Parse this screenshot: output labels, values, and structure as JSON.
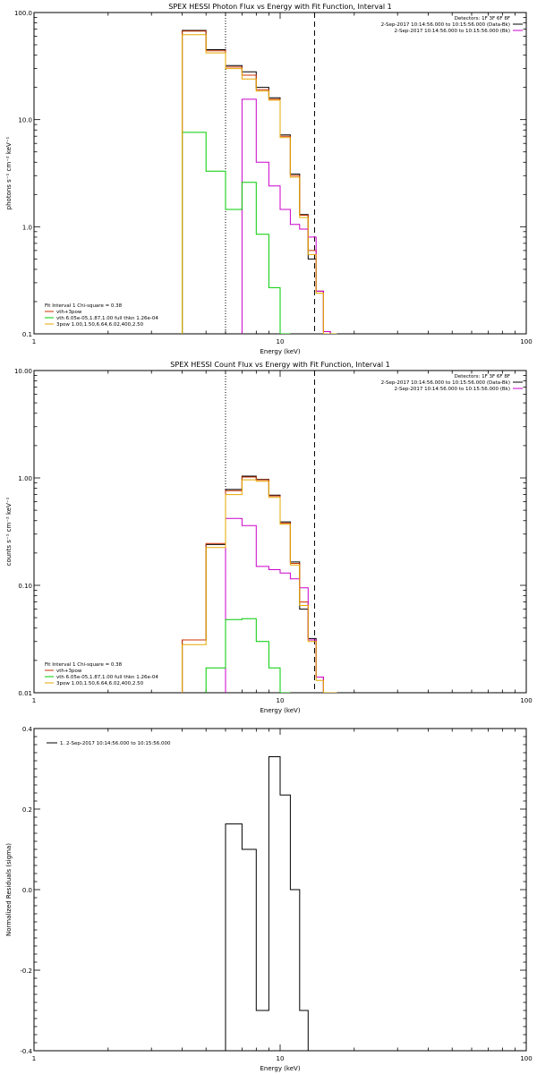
{
  "colors": {
    "axis": "#000000",
    "data": "#000000",
    "vth_4pow": "#cc3300",
    "vth": "#cc00cc",
    "pow": "#00cc00",
    "total": "#e6a800",
    "bk": "#cc00cc"
  },
  "chart_data": [
    {
      "type": "line",
      "title": "SPEX HESSI Photon Flux vs Energy with Fit Function, Interval 1",
      "xlabel": "Energy (keV)",
      "ylabel": "photons s⁻¹ cm⁻² keV⁻¹",
      "xscale": "log",
      "yscale": "log",
      "xlim": [
        1,
        100
      ],
      "ylim": [
        0.1,
        100
      ],
      "xticks": [
        "1",
        "10",
        "100"
      ],
      "yticks": [
        "0.1",
        "1.0",
        "10.0",
        "100.0"
      ],
      "vlines": [
        {
          "x": 6.0,
          "style": "dotted"
        },
        {
          "x": 13.8,
          "style": "dashed"
        }
      ],
      "legend_top": [
        "Detectors: 1F 3F 6F 8F",
        "2-Sep-2017 10:14:56.000 to 10:15:56.000 (Data-Bk)",
        "2-Sep-2017 10:14:56.000 to 10:15:56.000 (Bk)"
      ],
      "legend_bottom": [
        "Fit Interval 1   Chi-square = 0.38",
        "vth+3pow",
        "vth 6.05e-05,1.87,1.00  full thkn 1.26e-04",
        "3pow 1.00,1.50,6.64,6.02,400,2.50"
      ],
      "edges": [
        4.0,
        5.0,
        6.0,
        7.0,
        8.0,
        9.0,
        10.0,
        11.0,
        12.0,
        13.0,
        14.0,
        15.0,
        16.0,
        17.0
      ],
      "series": [
        {
          "name": "Data-Bk",
          "color_key": "data",
          "values": [
            68,
            45,
            32,
            28,
            20,
            16,
            7.2,
            3.1,
            1.3,
            0.5,
            0.25,
            0.105,
            0.1
          ]
        },
        {
          "name": "vth+3pow",
          "color_key": "vth_4pow",
          "values": [
            67,
            44,
            31,
            26,
            19,
            15.5,
            7.0,
            3.0,
            1.28,
            0.6,
            0.25,
            0.105,
            0.1
          ]
        },
        {
          "name": "vth",
          "color_key": "vth",
          "values": [
            null,
            null,
            null,
            15.5,
            4.0,
            2.4,
            1.45,
            1.05,
            0.95,
            0.8,
            0.25,
            0.105,
            0.1
          ]
        },
        {
          "name": "3pow",
          "color_key": "pow",
          "values": [
            7.6,
            3.3,
            1.45,
            2.6,
            0.85,
            0.27,
            0.1,
            null,
            null,
            null,
            null,
            null,
            null
          ]
        },
        {
          "name": "total",
          "color_key": "total",
          "values": [
            62,
            42,
            30,
            24,
            18.5,
            15.2,
            6.8,
            2.9,
            1.22,
            0.55,
            0.24,
            0.1,
            0.1
          ]
        }
      ]
    },
    {
      "type": "line",
      "title": "SPEX HESSI Count Flux vs Energy with Fit Function, Interval 1",
      "xlabel": "Energy (keV)",
      "ylabel": "counts s⁻¹ cm⁻² keV⁻¹",
      "xscale": "log",
      "yscale": "log",
      "xlim": [
        1,
        100
      ],
      "ylim": [
        0.01,
        10
      ],
      "xticks": [
        "1",
        "10",
        "100"
      ],
      "yticks": [
        "0.01",
        "0.10",
        "1.00",
        "10.00"
      ],
      "vlines": [
        {
          "x": 6.0,
          "style": "dotted"
        },
        {
          "x": 13.8,
          "style": "dashed"
        }
      ],
      "legend_top": [
        "Detectors: 1F 3F 6F 8F",
        "2-Sep-2017 10:14:56.000 to 10:15:56.000 (Data-Bk)",
        "2-Sep-2017 10:14:56.000 to 10:15:56.000 (Bk)"
      ],
      "legend_bottom": [
        "Fit Interval 1   Chi-square = 0.38",
        "vth+3pow",
        "vth 6.05e-05,1.87,1.00  full thkn 1.26e-04",
        "3pow 1.00,1.50,6.64,6.02,400,2.50"
      ],
      "edges": [
        4.0,
        5.0,
        6.0,
        7.0,
        8.0,
        9.0,
        10.0,
        11.0,
        12.0,
        13.0,
        14.0,
        15.0,
        16.0,
        17.0
      ],
      "series": [
        {
          "name": "Data-Bk",
          "color_key": "data",
          "values": [
            0.031,
            0.24,
            0.78,
            1.04,
            0.97,
            0.69,
            0.39,
            0.165,
            0.06,
            0.032,
            0.014,
            0.01,
            0.01
          ]
        },
        {
          "name": "vth+3pow",
          "color_key": "vth_4pow",
          "values": [
            0.031,
            0.245,
            0.76,
            1.02,
            0.96,
            0.68,
            0.38,
            0.16,
            0.07,
            0.031,
            0.014,
            0.01,
            0.01
          ]
        },
        {
          "name": "vth",
          "color_key": "vth",
          "values": [
            null,
            null,
            0.42,
            0.36,
            0.15,
            0.14,
            0.13,
            0.115,
            0.095,
            0.031,
            0.014,
            0.01,
            0.01
          ]
        },
        {
          "name": "3pow",
          "color_key": "pow",
          "values": [
            null,
            0.017,
            0.048,
            0.049,
            0.03,
            0.017,
            0.01,
            null,
            null,
            null,
            null,
            null,
            null
          ]
        },
        {
          "name": "total",
          "color_key": "total",
          "values": [
            0.028,
            0.225,
            0.7,
            0.96,
            0.93,
            0.66,
            0.37,
            0.155,
            0.065,
            0.03,
            0.013,
            0.01,
            0.01
          ]
        }
      ]
    },
    {
      "type": "line",
      "title": "",
      "xlabel": "Energy (keV)",
      "ylabel": "Normalized Residuals (sigma)",
      "xscale": "log",
      "yscale": "linear",
      "xlim": [
        1,
        100
      ],
      "ylim": [
        -0.4,
        0.4
      ],
      "xticks": [
        "1",
        "10",
        "100"
      ],
      "yticks": [
        "-0.4",
        "-0.2",
        "0.0",
        "0.2",
        "0.4"
      ],
      "legend_top": [
        "1. 2-Sep-2017 10:14:56.000 to 10:15:56.000"
      ],
      "edges": [
        6.0,
        7.0,
        8.0,
        9.0,
        10.0,
        11.0,
        12.0,
        13.0
      ],
      "series": [
        {
          "name": "residuals",
          "color_key": "data",
          "values": [
            0.163,
            0.1,
            -0.3,
            0.33,
            0.235,
            0.0,
            -0.3
          ]
        }
      ]
    }
  ]
}
